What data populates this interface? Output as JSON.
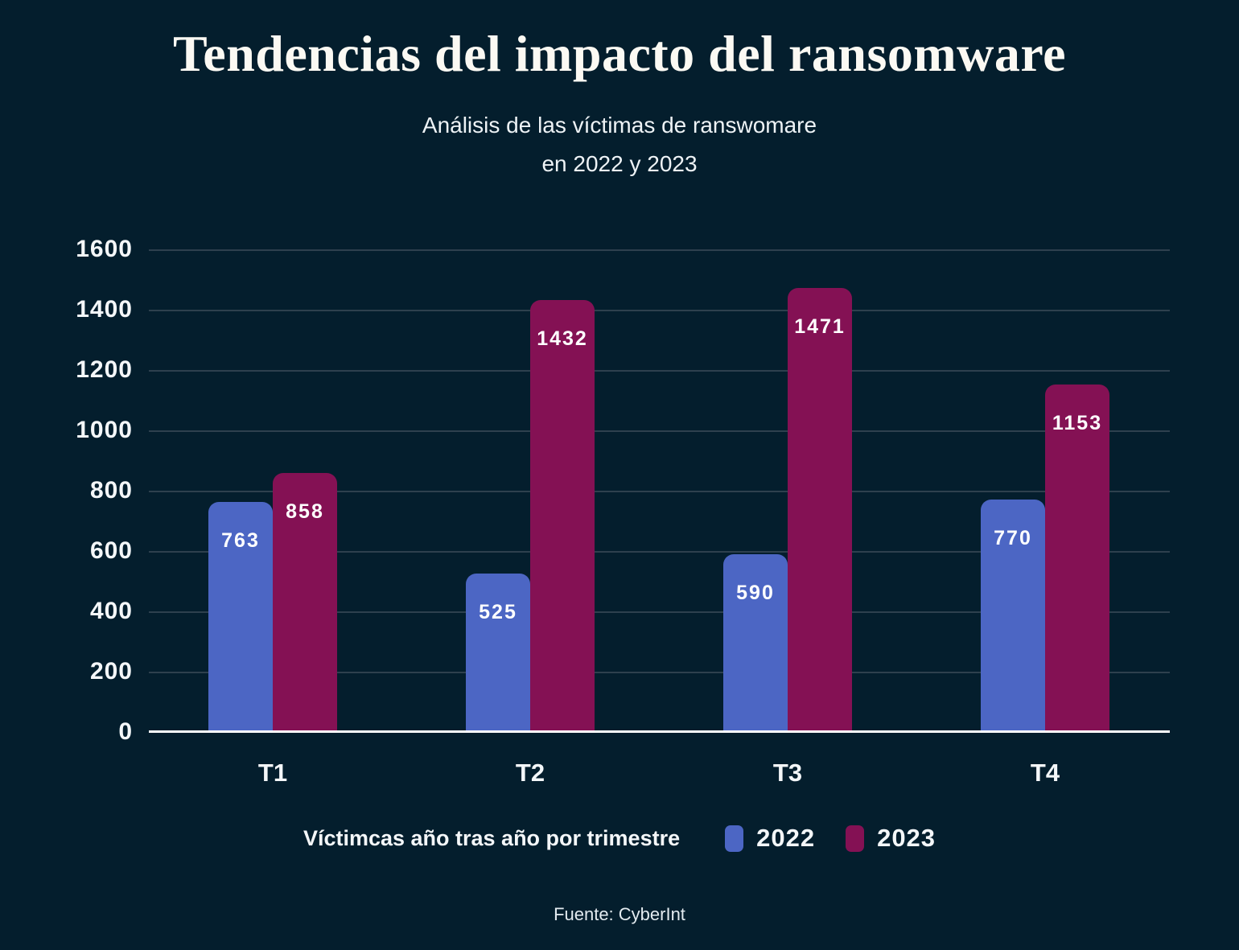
{
  "title": "Tendencias del impacto del ransomware",
  "subtitle_line1": "Análisis de las víctimas de ranswomare",
  "subtitle_line2": "en 2022 y 2023",
  "legend": {
    "label": "Víctimcas año tras año por trimestre"
  },
  "footer": "Fuente: CyberInt",
  "colors": {
    "background": "#041e2d",
    "gridline": "#2e404e",
    "axis_line": "#ffffff",
    "text": "#ffffff",
    "series_2022": "#4c66c4",
    "series_2023": "#841154"
  },
  "chart_data": {
    "type": "bar",
    "categories": [
      "T1",
      "T2",
      "T3",
      "T4"
    ],
    "series": [
      {
        "name": "2022",
        "color": "#4c66c4",
        "values": [
          763,
          525,
          590,
          770
        ]
      },
      {
        "name": "2023",
        "color": "#841154",
        "values": [
          858,
          1432,
          1471,
          1153
        ]
      }
    ],
    "title": "Tendencias del impacto del ransomware",
    "subtitle": "Análisis de las víctimas de ranswomare en 2022 y 2023",
    "xlabel": "",
    "ylabel": "",
    "ylim": [
      0,
      1600
    ],
    "yticks": [
      0,
      200,
      400,
      600,
      800,
      1000,
      1200,
      1400,
      1600
    ],
    "grid": "horizontal",
    "show_value_labels": true,
    "legend_position": "bottom",
    "legend_caption": "Víctimcas año tras año por trimestre",
    "source": "Fuente: CyberInt"
  }
}
